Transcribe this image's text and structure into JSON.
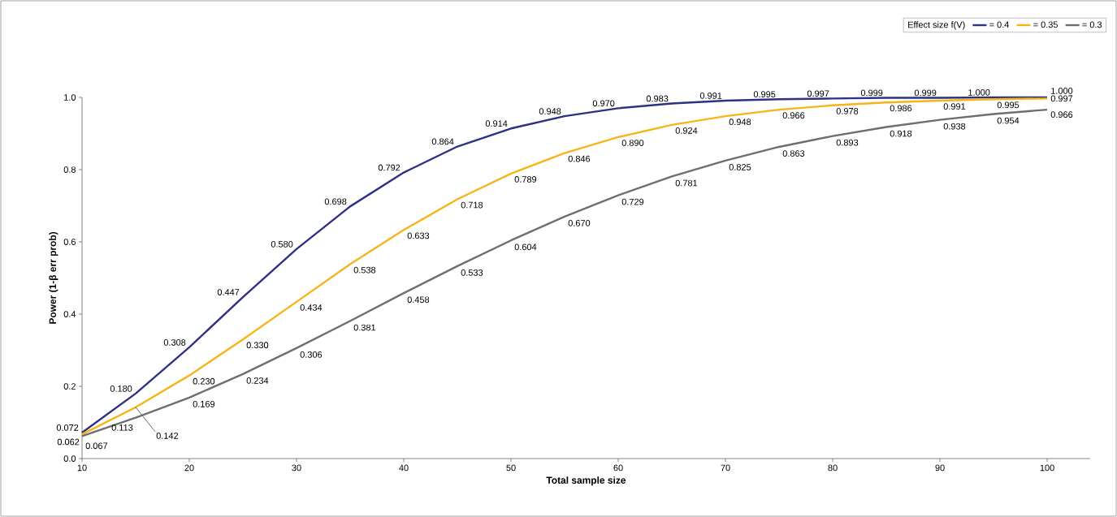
{
  "chart_data": {
    "type": "line",
    "xlabel": "Total sample size",
    "ylabel": "Power (1-β err prob)",
    "legend_title": "Effect size f(V)",
    "legend": "top right",
    "x": [
      10,
      15,
      20,
      25,
      30,
      35,
      40,
      45,
      50,
      55,
      60,
      65,
      70,
      75,
      80,
      85,
      90,
      95,
      100
    ],
    "xlim": [
      10,
      104
    ],
    "xticks": [
      10,
      20,
      30,
      40,
      50,
      60,
      70,
      80,
      90,
      100
    ],
    "ylim": [
      0,
      1
    ],
    "yticks": [
      {
        "value": 0,
        "label": "0.0"
      },
      {
        "value": 0.2,
        "label": "0.2"
      },
      {
        "value": 0.4,
        "label": "0.4"
      },
      {
        "value": 0.6,
        "label": "0.6"
      },
      {
        "value": 0.8,
        "label": "0.8"
      },
      {
        "value": 1,
        "label": "1.0"
      }
    ],
    "series": [
      {
        "name": "= 0.4",
        "color": "#2e3184",
        "values": [
          0.072,
          0.18,
          0.308,
          0.447,
          0.58,
          0.698,
          0.792,
          0.864,
          0.914,
          0.948,
          0.97,
          0.983,
          0.991,
          0.995,
          0.997,
          0.999,
          0.999,
          1.0,
          1.0
        ],
        "value_labels": [
          "0.072",
          "0.180",
          "0.308",
          "0.447",
          "0.580",
          "0.698",
          "0.792",
          "0.864",
          "0.914",
          "0.948",
          "0.970",
          "0.983",
          "0.991",
          "0.995",
          "0.997",
          "0.999",
          "0.999",
          "1.000",
          "1.000"
        ]
      },
      {
        "name": "= 0.35",
        "color": "#f7b418",
        "values": [
          0.067,
          0.142,
          0.23,
          0.33,
          0.434,
          0.538,
          0.633,
          0.718,
          0.789,
          0.846,
          0.89,
          0.924,
          0.948,
          0.966,
          0.978,
          0.986,
          0.991,
          0.995,
          0.997
        ],
        "value_labels": [
          "0.067",
          "0.142",
          "0.230",
          "0.330",
          "0.434",
          "0.538",
          "0.633",
          "0.718",
          "0.789",
          "0.846",
          "0.890",
          "0.924",
          "0.948",
          "0.966",
          "0.978",
          "0.986",
          "0.991",
          "0.995",
          "0.997"
        ]
      },
      {
        "name": "= 0.3",
        "color": "#6d6e70",
        "values": [
          0.062,
          0.113,
          0.169,
          0.234,
          0.306,
          0.381,
          0.458,
          0.533,
          0.604,
          0.67,
          0.729,
          0.781,
          0.825,
          0.863,
          0.893,
          0.918,
          0.938,
          0.954,
          0.966
        ],
        "value_labels": [
          "0.062",
          "0.113",
          "0.169",
          "0.234",
          "0.306",
          "0.381",
          "0.458",
          "0.533",
          "0.604",
          "0.670",
          "0.729",
          "0.781",
          "0.825",
          "0.863",
          "0.893",
          "0.918",
          "0.938",
          "0.954",
          "0.966"
        ]
      }
    ]
  }
}
